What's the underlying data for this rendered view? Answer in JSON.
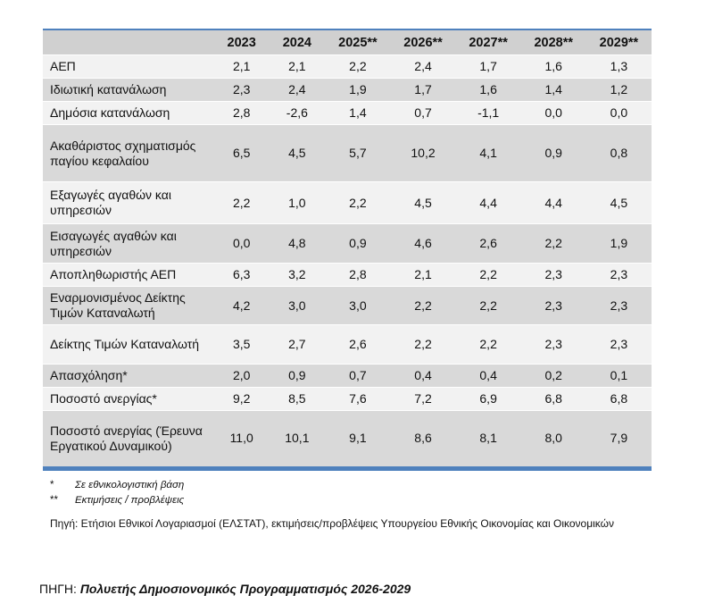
{
  "table": {
    "columns": [
      "",
      "2023",
      "2024",
      "2025**",
      "2026**",
      "2027**",
      "2028**",
      "2029**"
    ],
    "rows": [
      {
        "label": "ΑΕΠ",
        "values": [
          "2,1",
          "2,1",
          "2,2",
          "2,4",
          "1,7",
          "1,6",
          "1,3"
        ]
      },
      {
        "label": "Ιδιωτική κατανάλωση",
        "values": [
          "2,3",
          "2,4",
          "1,9",
          "1,7",
          "1,6",
          "1,4",
          "1,2"
        ]
      },
      {
        "label": "Δημόσια κατανάλωση",
        "values": [
          "2,8",
          "-2,6",
          "1,4",
          "0,7",
          "-1,1",
          "0,0",
          "0,0"
        ]
      },
      {
        "label": "Ακαθάριστος σχηματισμός παγίου κεφαλαίου",
        "values": [
          "6,5",
          "4,5",
          "5,7",
          "10,2",
          "4,1",
          "0,9",
          "0,8"
        ]
      },
      {
        "label": "Εξαγωγές αγαθών και υπηρεσιών",
        "values": [
          "2,2",
          "1,0",
          "2,2",
          "4,5",
          "4,4",
          "4,4",
          "4,5"
        ]
      },
      {
        "label": "Εισαγωγές αγαθών και υπηρεσιών",
        "values": [
          "0,0",
          "4,8",
          "0,9",
          "4,6",
          "2,6",
          "2,2",
          "1,9"
        ]
      },
      {
        "label": "Αποπληθωριστής ΑΕΠ",
        "values": [
          "6,3",
          "3,2",
          "2,8",
          "2,1",
          "2,2",
          "2,3",
          "2,3"
        ]
      },
      {
        "label": "Εναρμονισμένος Δείκτης Τιμών Καταναλωτή",
        "values": [
          "4,2",
          "3,0",
          "3,0",
          "2,2",
          "2,2",
          "2,3",
          "2,3"
        ]
      },
      {
        "label": "Δείκτης Τιμών Καταναλωτή",
        "values": [
          "3,5",
          "2,7",
          "2,6",
          "2,2",
          "2,2",
          "2,3",
          "2,3"
        ]
      },
      {
        "label": "Απασχόληση*",
        "values": [
          "2,0",
          "0,9",
          "0,7",
          "0,4",
          "0,4",
          "0,2",
          "0,1"
        ]
      },
      {
        "label": "Ποσοστό ανεργίας*",
        "values": [
          "9,2",
          "8,5",
          "7,6",
          "7,2",
          "6,9",
          "6,8",
          "6,8"
        ]
      },
      {
        "label": "Ποσοστό ανεργίας (Έρευνα Εργατικού Δυναμικού)",
        "values": [
          "11,0",
          "10,1",
          "9,1",
          "8,6",
          "8,1",
          "8,0",
          "7,9"
        ]
      }
    ]
  },
  "notes": [
    {
      "mark": "*",
      "text": "Σε εθνικολογιστική βάση"
    },
    {
      "mark": "**",
      "text": "Εκτιμήσεις / προβλέψεις"
    }
  ],
  "source_note": "Πηγή: Ετήσιοι Εθνικοί Λογαριασμοί (ΕΛΣΤΑΤ), εκτιμήσεις/προβλέψεις Υπουργείου Εθνικής Οικονομίας και Οικονομικών",
  "reference": {
    "prefix": "ΠΗΓΗ: ",
    "title": "Πολυετής Δημοσιονομικός Προγραμματισμός 2026-2029"
  },
  "colors": {
    "accent": "#4f81bd",
    "header_bg": "#d0d0d0",
    "row_dark": "#d9d9d9",
    "row_light": "#f2f2f2"
  }
}
